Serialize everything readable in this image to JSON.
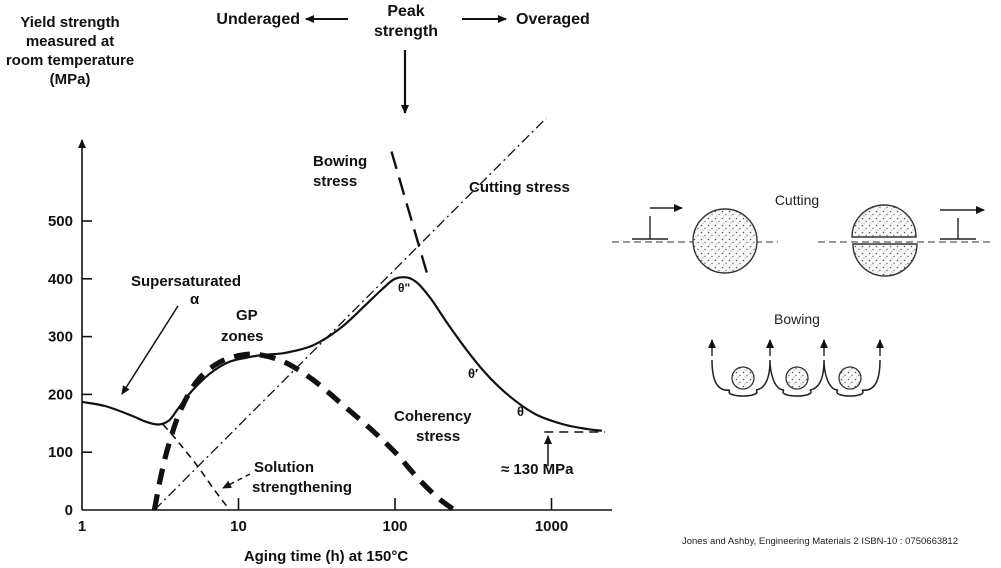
{
  "chart_data": {
    "type": "line",
    "ylabel_lines": [
      "Yield strength",
      "measured at",
      "room temperature",
      "(MPa)"
    ],
    "xlabel": "Aging time (h)  at 150°C",
    "x_scale": "log",
    "xlim": [
      1,
      2200
    ],
    "ylim": [
      0,
      600
    ],
    "x_ticks": [
      {
        "v": 1,
        "label": "1"
      },
      {
        "v": 10,
        "label": "10"
      },
      {
        "v": 100,
        "label": "100"
      },
      {
        "v": 1000,
        "label": "1000"
      }
    ],
    "y_ticks": [
      {
        "v": 0,
        "label": "0"
      },
      {
        "v": 100,
        "label": "100"
      },
      {
        "v": 200,
        "label": "200"
      },
      {
        "v": 300,
        "label": "300"
      },
      {
        "v": 400,
        "label": "400"
      },
      {
        "v": 500,
        "label": "500"
      }
    ],
    "series": [
      {
        "name": "",
        "style": "solid",
        "points": [
          [
            1,
            187
          ],
          [
            1.4,
            180
          ],
          [
            2,
            165
          ],
          [
            2.6,
            152
          ],
          [
            3.1,
            148
          ],
          [
            3.6,
            155
          ],
          [
            4.1,
            175
          ],
          [
            5,
            205
          ],
          [
            6.5,
            235
          ],
          [
            8.5,
            255
          ],
          [
            11,
            263
          ],
          [
            14,
            268
          ],
          [
            20,
            272
          ],
          [
            30,
            285
          ],
          [
            45,
            315
          ],
          [
            65,
            355
          ],
          [
            85,
            385
          ],
          [
            100,
            400
          ],
          [
            120,
            402
          ],
          [
            140,
            392
          ],
          [
            170,
            365
          ],
          [
            220,
            320
          ],
          [
            300,
            270
          ],
          [
            400,
            230
          ],
          [
            550,
            195
          ],
          [
            800,
            165
          ],
          [
            1200,
            148
          ],
          [
            1700,
            140
          ],
          [
            2100,
            137
          ]
        ]
      },
      {
        "name": "Coherency stress",
        "style": "thick-dash",
        "points": [
          [
            2.9,
            0
          ],
          [
            3.2,
            60
          ],
          [
            3.6,
            115
          ],
          [
            4.3,
            175
          ],
          [
            5.5,
            225
          ],
          [
            7.5,
            255
          ],
          [
            10.5,
            268
          ],
          [
            14,
            268
          ],
          [
            20,
            255
          ],
          [
            30,
            225
          ],
          [
            45,
            185
          ],
          [
            70,
            140
          ],
          [
            100,
            100
          ],
          [
            140,
            55
          ],
          [
            190,
            20
          ],
          [
            240,
            0
          ]
        ]
      },
      {
        "name": "Solution strengthening",
        "style": "thin-dash",
        "points": [
          [
            3.3,
            148
          ],
          [
            4.2,
            115
          ],
          [
            5.5,
            75
          ],
          [
            7,
            35
          ],
          [
            8.5,
            5
          ]
        ]
      },
      {
        "name": "Cutting stress",
        "style": "dash-dot",
        "points": [
          [
            2.9,
            0
          ],
          [
            2200,
            780
          ]
        ]
      },
      {
        "name": "Bowing stress",
        "style": "long-dash",
        "points": [
          [
            95,
            620
          ],
          [
            160,
            410
          ]
        ]
      },
      {
        "name": "",
        "style": "dash",
        "points": [
          [
            900,
            135
          ],
          [
            2200,
            135
          ]
        ]
      }
    ],
    "annotations": [
      {
        "text": "Underaged"
      },
      {
        "text": "Peak"
      },
      {
        "text": "strength"
      },
      {
        "text": "Overaged"
      },
      {
        "text": "Bowing"
      },
      {
        "text": "stress"
      },
      {
        "text": "Cutting stress"
      },
      {
        "text": "Supersaturated"
      },
      {
        "text": "α"
      },
      {
        "text": "GP"
      },
      {
        "text": "zones"
      },
      {
        "text": "θ\""
      },
      {
        "text": "θ′"
      },
      {
        "text": "θ"
      },
      {
        "text": "Coherency"
      },
      {
        "text": "stress"
      },
      {
        "text": "Solution"
      },
      {
        "text": "strengthening"
      },
      {
        "text": "≈ 130 MPa"
      }
    ]
  },
  "diagram": {
    "cutting_label": "Cutting",
    "bowing_label": "Bowing"
  },
  "credit": "Jones and Ashby, Engineering Materials 2 ISBN-10 : 0750663812"
}
